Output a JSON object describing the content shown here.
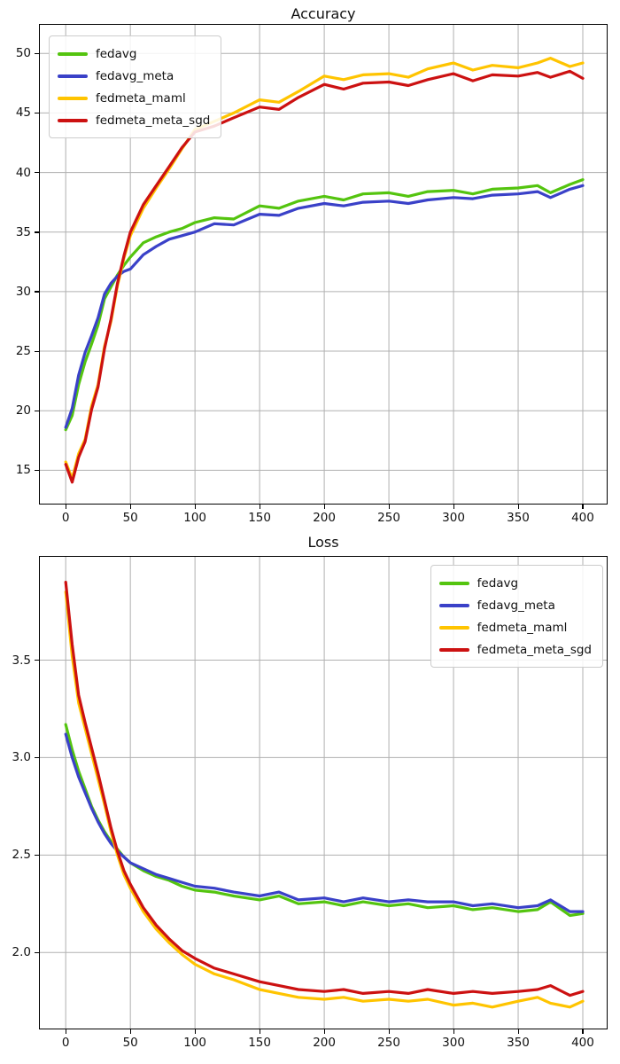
{
  "chart_data": [
    {
      "type": "line",
      "title": "Accuracy",
      "xlabel": "",
      "ylabel": "",
      "grid": true,
      "legend_position": "upper-left",
      "xlim": [
        -20,
        418.5
      ],
      "ylim": [
        12.2,
        52.4
      ],
      "xticks": [
        0,
        50,
        100,
        150,
        200,
        250,
        300,
        350,
        400
      ],
      "xtick_labels": [
        "0",
        "50",
        "100",
        "150",
        "200",
        "250",
        "300",
        "350",
        "400"
      ],
      "yticks": [
        15,
        20,
        25,
        30,
        35,
        40,
        45,
        50
      ],
      "ytick_labels": [
        "15",
        "20",
        "25",
        "30",
        "35",
        "40",
        "45",
        "50"
      ],
      "x": [
        0,
        5,
        10,
        15,
        20,
        25,
        30,
        35,
        40,
        45,
        50,
        60,
        70,
        80,
        90,
        100,
        115,
        130,
        150,
        165,
        180,
        200,
        215,
        230,
        250,
        265,
        280,
        300,
        315,
        330,
        350,
        365,
        375,
        390,
        400
      ],
      "series": [
        {
          "name": "fedavg",
          "color": "#54c40f",
          "values": [
            18.4,
            19.6,
            22.2,
            24.1,
            25.6,
            27.2,
            29.4,
            30.4,
            31.4,
            32.2,
            32.9,
            34.1,
            34.6,
            35.0,
            35.3,
            35.8,
            36.2,
            36.1,
            37.2,
            37.0,
            37.6,
            38.0,
            37.7,
            38.2,
            38.3,
            38.0,
            38.4,
            38.5,
            38.2,
            38.6,
            38.7,
            38.9,
            38.3,
            39.0,
            39.4
          ]
        },
        {
          "name": "fedavg_meta",
          "color": "#3a41c8",
          "values": [
            18.6,
            20.2,
            23.0,
            24.9,
            26.3,
            27.8,
            29.8,
            30.7,
            31.3,
            31.7,
            31.9,
            33.1,
            33.8,
            34.4,
            34.7,
            35.0,
            35.7,
            35.6,
            36.5,
            36.4,
            37.0,
            37.4,
            37.2,
            37.5,
            37.6,
            37.4,
            37.7,
            37.9,
            37.8,
            38.1,
            38.2,
            38.4,
            37.9,
            38.6,
            38.9
          ]
        },
        {
          "name": "fedmeta_maml",
          "color": "#ffc400",
          "values": [
            15.7,
            14.3,
            16.4,
            17.6,
            20.4,
            22.2,
            25.4,
            27.5,
            30.5,
            32.8,
            34.7,
            37.0,
            38.7,
            40.3,
            42.0,
            43.6,
            44.3,
            45.0,
            46.1,
            45.9,
            46.8,
            48.1,
            47.8,
            48.2,
            48.3,
            48.0,
            48.7,
            49.2,
            48.6,
            49.0,
            48.8,
            49.2,
            49.6,
            48.9,
            49.2
          ]
        },
        {
          "name": "fedmeta_meta_sgd",
          "color": "#cc1111",
          "values": [
            15.5,
            14.0,
            16.1,
            17.4,
            20.1,
            22.0,
            25.2,
            27.7,
            30.7,
            33.0,
            35.0,
            37.3,
            38.9,
            40.5,
            42.1,
            43.4,
            43.9,
            44.6,
            45.5,
            45.3,
            46.3,
            47.4,
            47.0,
            47.5,
            47.6,
            47.3,
            47.8,
            48.3,
            47.7,
            48.2,
            48.1,
            48.4,
            48.0,
            48.5,
            47.9
          ]
        }
      ]
    },
    {
      "type": "line",
      "title": "Loss",
      "xlabel": "",
      "ylabel": "",
      "grid": true,
      "legend_position": "upper-right",
      "xlim": [
        -20,
        418.5
      ],
      "ylim": [
        1.61,
        4.03
      ],
      "xticks": [
        0,
        50,
        100,
        150,
        200,
        250,
        300,
        350,
        400
      ],
      "xtick_labels": [
        "0",
        "50",
        "100",
        "150",
        "200",
        "250",
        "300",
        "350",
        "400"
      ],
      "yticks": [
        2.0,
        2.5,
        3.0,
        3.5
      ],
      "ytick_labels": [
        "2.0",
        "2.5",
        "3.0",
        "3.5"
      ],
      "x": [
        0,
        5,
        10,
        15,
        20,
        25,
        30,
        35,
        40,
        45,
        50,
        60,
        70,
        80,
        90,
        100,
        115,
        130,
        150,
        165,
        180,
        200,
        215,
        230,
        250,
        265,
        280,
        300,
        315,
        330,
        350,
        365,
        375,
        390,
        400
      ],
      "series": [
        {
          "name": "fedavg",
          "color": "#54c40f",
          "values": [
            3.17,
            3.04,
            2.93,
            2.84,
            2.75,
            2.68,
            2.62,
            2.57,
            2.53,
            2.49,
            2.46,
            2.42,
            2.39,
            2.37,
            2.34,
            2.32,
            2.31,
            2.29,
            2.27,
            2.29,
            2.25,
            2.26,
            2.24,
            2.26,
            2.24,
            2.25,
            2.23,
            2.24,
            2.22,
            2.23,
            2.21,
            2.22,
            2.26,
            2.19,
            2.2
          ]
        },
        {
          "name": "fedavg_meta",
          "color": "#3a41c8",
          "values": [
            3.12,
            3.0,
            2.9,
            2.82,
            2.74,
            2.67,
            2.61,
            2.56,
            2.52,
            2.49,
            2.46,
            2.43,
            2.4,
            2.38,
            2.36,
            2.34,
            2.33,
            2.31,
            2.29,
            2.31,
            2.27,
            2.28,
            2.26,
            2.28,
            2.26,
            2.27,
            2.26,
            2.26,
            2.24,
            2.25,
            2.23,
            2.24,
            2.27,
            2.21,
            2.21
          ]
        },
        {
          "name": "fedmeta_maml",
          "color": "#ffc400",
          "values": [
            3.85,
            3.52,
            3.28,
            3.15,
            3.02,
            2.89,
            2.76,
            2.62,
            2.5,
            2.4,
            2.33,
            2.21,
            2.12,
            2.05,
            1.99,
            1.94,
            1.89,
            1.86,
            1.81,
            1.79,
            1.77,
            1.76,
            1.77,
            1.75,
            1.76,
            1.75,
            1.76,
            1.73,
            1.74,
            1.72,
            1.75,
            1.77,
            1.74,
            1.72,
            1.75
          ]
        },
        {
          "name": "fedmeta_meta_sgd",
          "color": "#cc1111",
          "values": [
            3.9,
            3.58,
            3.32,
            3.18,
            3.05,
            2.92,
            2.78,
            2.64,
            2.52,
            2.42,
            2.35,
            2.23,
            2.14,
            2.07,
            2.01,
            1.97,
            1.92,
            1.89,
            1.85,
            1.83,
            1.81,
            1.8,
            1.81,
            1.79,
            1.8,
            1.79,
            1.81,
            1.79,
            1.8,
            1.79,
            1.8,
            1.81,
            1.83,
            1.78,
            1.8
          ]
        }
      ]
    }
  ],
  "style": {
    "grid_color": "#b0b0b0",
    "spine_color": "#000000",
    "line_width": 3.2
  }
}
